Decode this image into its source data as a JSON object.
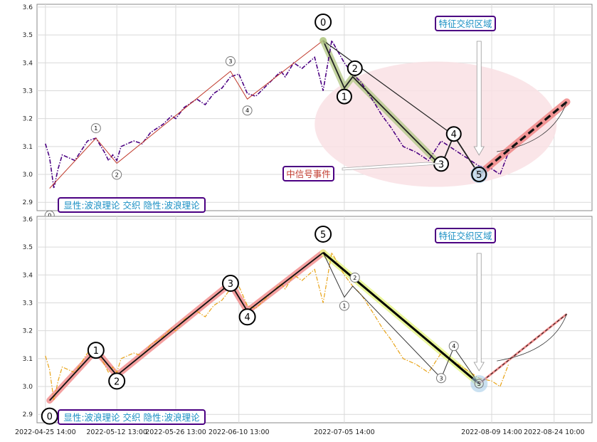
{
  "chart_data": [
    {
      "type": "line",
      "panel": "top",
      "title": "",
      "ylim": [
        2.87,
        3.61
      ],
      "yticks": [
        2.9,
        3.0,
        3.1,
        3.2,
        3.3,
        3.4,
        3.5,
        3.6
      ],
      "ytick_labels": [
        "2.9",
        "3.0",
        "3.1",
        "3.2",
        "3.3",
        "3.4",
        "3.5",
        "3.6"
      ],
      "grid": true,
      "series": [
        {
          "style": "dash-dot",
          "color": "#4b0082",
          "x": [
            "2022-04-25 14:00",
            "2022-04-26 14:00",
            "2022-04-27 14:00",
            "2022-04-28 14:00",
            "2022-04-29 14:00",
            "2022-05-02 14:00",
            "2022-05-05 14:00",
            "2022-05-07 14:00",
            "2022-05-09 14:00",
            "2022-05-10 14:00",
            "2022-05-11 14:00",
            "2022-05-12 13:00",
            "2022-05-13 13:00",
            "2022-05-16 13:00",
            "2022-05-18 13:00",
            "2022-05-20 13:00",
            "2022-05-23 13:00",
            "2022-05-25 13:00",
            "2022-05-26 13:00",
            "2022-05-28 13:00",
            "2022-05-31 13:00",
            "2022-06-02 13:00",
            "2022-06-04 13:00",
            "2022-06-06 13:00",
            "2022-06-08 13:00",
            "2022-06-10 13:00",
            "2022-06-12 13:00",
            "2022-06-14 13:00",
            "2022-06-16 13:00",
            "2022-06-18 13:00",
            "2022-06-20 13:00",
            "2022-06-21 13:00",
            "2022-06-23 13:00",
            "2022-06-25 13:00",
            "2022-06-28 13:00",
            "2022-06-30 13:00",
            "2022-07-02 14:00",
            "2022-07-05 14:00",
            "2022-07-07 14:00",
            "2022-07-09 14:00",
            "2022-07-12 14:00",
            "2022-07-14 14:00",
            "2022-07-16 14:00",
            "2022-07-19 14:00",
            "2022-07-22 14:00",
            "2022-07-25 14:00",
            "2022-07-28 14:00",
            "2022-07-31 14:00",
            "2022-08-03 14:00",
            "2022-08-06 14:00",
            "2022-08-09 14:00",
            "2022-08-11 14:00",
            "2022-08-13 14:00"
          ],
          "values": [
            3.11,
            3.06,
            2.95,
            3.02,
            3.07,
            3.05,
            3.12,
            3.13,
            3.08,
            3.05,
            3.07,
            3.05,
            3.1,
            3.12,
            3.11,
            3.15,
            3.18,
            3.21,
            3.2,
            3.24,
            3.27,
            3.25,
            3.29,
            3.31,
            3.35,
            3.36,
            3.29,
            3.28,
            3.31,
            3.34,
            3.37,
            3.35,
            3.4,
            3.38,
            3.42,
            3.3,
            3.48,
            3.4,
            3.36,
            3.33,
            3.26,
            3.21,
            3.17,
            3.1,
            3.08,
            3.05,
            3.12,
            3.09,
            3.06,
            3.03,
            3.02,
            3.0,
            3.08
          ]
        }
      ],
      "wave_points": [
        {
          "label": "0",
          "x": "2022-04-26 14:00",
          "y": 2.95
        },
        {
          "label": "1",
          "x": "2022-05-07 14:00",
          "y": 3.13
        },
        {
          "label": "2",
          "x": "2022-05-12 13:00",
          "y": 3.04
        },
        {
          "label": "3",
          "x": "2022-06-08 13:00",
          "y": 3.37
        },
        {
          "label": "4",
          "x": "2022-06-12 13:00",
          "y": 3.27
        },
        {
          "label": "5",
          "x": "2022-06-30 13:00",
          "y": 3.48
        }
      ],
      "down_wave_points": [
        {
          "label": "0",
          "x": "2022-06-30 13:00",
          "y": 3.48
        },
        {
          "label": "1",
          "x": "2022-07-05 14:00",
          "y": 3.31
        },
        {
          "label": "2",
          "x": "2022-07-07 14:00",
          "y": 3.35
        },
        {
          "label": "3",
          "x": "2022-07-28 14:00",
          "y": 3.03
        },
        {
          "label": "4",
          "x": "2022-07-31 14:00",
          "y": 3.14
        },
        {
          "label": "5",
          "x": "2022-08-06 14:00",
          "y": 3.0
        }
      ],
      "projection": {
        "from": {
          "x": "2022-08-06 14:00",
          "y": 3.0
        },
        "to": {
          "x": "2022-08-27 10:00",
          "y": 3.26
        }
      },
      "annotations": {
        "zone_label": "特征交织区域",
        "signal_label": "中信号事件",
        "legend_label": "显性:波浪理论 交织 隐性:波浪理论"
      }
    },
    {
      "type": "line",
      "panel": "bottom",
      "title": "",
      "ylim": [
        2.87,
        3.61
      ],
      "yticks": [
        2.9,
        3.0,
        3.1,
        3.2,
        3.3,
        3.4,
        3.5,
        3.6
      ],
      "ytick_labels": [
        "2.9",
        "3.0",
        "3.1",
        "3.2",
        "3.3",
        "3.4",
        "3.5",
        "3.6"
      ],
      "grid": true,
      "xtick_labels": [
        "2022-04-25 14:00",
        "2022-05-12 13:00",
        "2022-05-26 13:00",
        "2022-06-10 13:00",
        "2022-07-05 14:00",
        "2022-08-09 14:00",
        "2022-08-24 10:00"
      ],
      "series": [
        {
          "style": "dash-dot",
          "color": "#e8a317",
          "values_same_as": "top"
        }
      ],
      "wave_points": [
        {
          "label": "0",
          "x": "2022-04-26 14:00",
          "y": 2.95
        },
        {
          "label": "1",
          "x": "2022-05-07 14:00",
          "y": 3.13
        },
        {
          "label": "2",
          "x": "2022-05-12 13:00",
          "y": 3.04
        },
        {
          "label": "3",
          "x": "2022-06-08 13:00",
          "y": 3.37
        },
        {
          "label": "4",
          "x": "2022-06-12 13:00",
          "y": 3.27
        },
        {
          "label": "5",
          "x": "2022-06-30 13:00",
          "y": 3.48
        }
      ],
      "down_wave_points": [
        {
          "label": "0",
          "x": "2022-06-30 13:00",
          "y": 3.48
        },
        {
          "label": "1",
          "x": "2022-07-05 14:00",
          "y": 3.32
        },
        {
          "label": "2",
          "x": "2022-07-07 14:00",
          "y": 3.36
        },
        {
          "label": "3",
          "x": "2022-07-28 14:00",
          "y": 3.03
        },
        {
          "label": "4",
          "x": "2022-07-31 14:00",
          "y": 3.14
        },
        {
          "label": "5",
          "x": "2022-08-06 14:00",
          "y": 3.01
        }
      ],
      "projection": {
        "from": {
          "x": "2022-08-06 14:00",
          "y": 3.01
        },
        "to": {
          "x": "2022-08-27 10:00",
          "y": 3.26
        }
      },
      "annotations": {
        "zone_label": "特征交织区域",
        "legend_label": "显性:波浪理论 交织 隐性:波浪理论"
      }
    }
  ],
  "colors": {
    "top_series": "#4b0082",
    "bottom_series": "#e8a317",
    "highlight_red": "#f08080",
    "highlight_green": "#b5c98a",
    "highlight_yellow": "#e6f58a",
    "zone_fill": "#f9e1e4",
    "label_text": "#1a8fc4",
    "label_border": "#4b0082",
    "signal_text": "#c0392b"
  }
}
